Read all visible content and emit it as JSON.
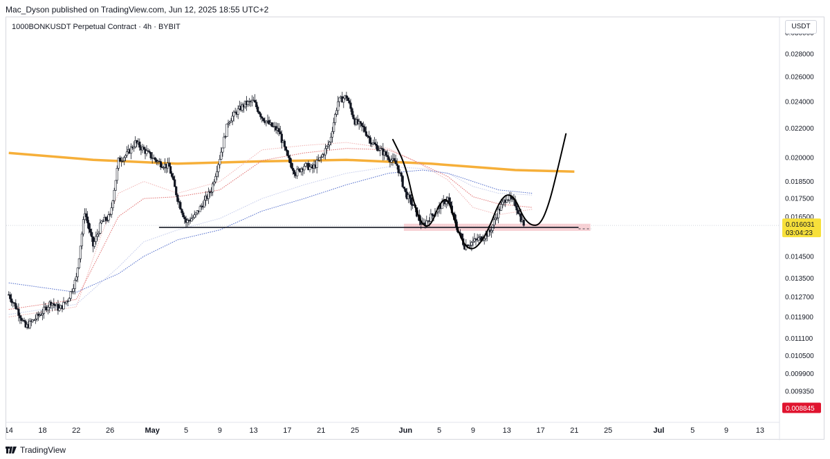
{
  "header": {
    "publish_line": "Mac_Dyson published on TradingView.com, Jun 12, 2025 18:55 UTC+2"
  },
  "footer": {
    "brand": "TradingView"
  },
  "chart_data": {
    "type": "candlestick",
    "title": "1000BONKUSDT Perpetual Contract · 4h · BYBIT",
    "currency": "USDT",
    "y_scale": "log",
    "ylim": [
      0.0086,
      0.031
    ],
    "y_ticks": [
      "0.030000",
      "0.028000",
      "0.026000",
      "0.024000",
      "0.022000",
      "0.020000",
      "0.018500",
      "0.017500",
      "0.016500",
      "0.014500",
      "0.013500",
      "0.012700",
      "0.011900",
      "0.011100",
      "0.010500",
      "0.009900",
      "0.009350"
    ],
    "x_ticks": [
      "14",
      "18",
      "22",
      "26",
      "May",
      "5",
      "9",
      "13",
      "17",
      "21",
      "25",
      "Jun",
      "5",
      "9",
      "13",
      "17",
      "21",
      "25",
      "Jul",
      "5",
      "9",
      "13"
    ],
    "x_range_days": [
      -0.3,
      91.3
    ],
    "last_price": {
      "value": "0.016031",
      "countdown": "03:04:23",
      "color": "#f7e03a"
    },
    "low_marker": {
      "value": "0.008845",
      "color": "#e0142f"
    },
    "grid": false,
    "price_path": [
      [
        0,
        0.0128
      ],
      [
        1,
        0.0122
      ],
      [
        2,
        0.0115
      ],
      [
        3,
        0.0118
      ],
      [
        4,
        0.0121
      ],
      [
        5,
        0.0125
      ],
      [
        6,
        0.0122
      ],
      [
        7,
        0.0126
      ],
      [
        8,
        0.0135
      ],
      [
        9,
        0.0168
      ],
      [
        10,
        0.015
      ],
      [
        11,
        0.0162
      ],
      [
        12,
        0.0165
      ],
      [
        13,
        0.0198
      ],
      [
        14,
        0.0202
      ],
      [
        15,
        0.021
      ],
      [
        16,
        0.0205
      ],
      [
        17,
        0.02
      ],
      [
        18,
        0.0196
      ],
      [
        19,
        0.0194
      ],
      [
        20,
        0.0175
      ],
      [
        21,
        0.0162
      ],
      [
        22,
        0.0165
      ],
      [
        23,
        0.0172
      ],
      [
        24,
        0.018
      ],
      [
        25,
        0.02
      ],
      [
        26,
        0.0225
      ],
      [
        27,
        0.0232
      ],
      [
        28,
        0.0238
      ],
      [
        29,
        0.024
      ],
      [
        30,
        0.0228
      ],
      [
        31,
        0.0222
      ],
      [
        32,
        0.0218
      ],
      [
        33,
        0.02
      ],
      [
        34,
        0.019
      ],
      [
        35,
        0.0195
      ],
      [
        36,
        0.0193
      ],
      [
        37,
        0.02
      ],
      [
        38,
        0.021
      ],
      [
        39,
        0.024
      ],
      [
        40,
        0.0244
      ],
      [
        41,
        0.0225
      ],
      [
        42,
        0.022
      ],
      [
        43,
        0.021
      ],
      [
        44,
        0.0205
      ],
      [
        45,
        0.02
      ],
      [
        46,
        0.0195
      ],
      [
        47,
        0.0178
      ],
      [
        48,
        0.017
      ],
      [
        49,
        0.016
      ],
      [
        50,
        0.0165
      ],
      [
        51,
        0.017
      ],
      [
        52,
        0.0175
      ],
      [
        53,
        0.016
      ],
      [
        54,
        0.015
      ],
      [
        55,
        0.0152
      ],
      [
        56,
        0.0154
      ],
      [
        57,
        0.0157
      ],
      [
        58,
        0.0168
      ],
      [
        59,
        0.0176
      ],
      [
        60,
        0.0172
      ],
      [
        61,
        0.01603
      ]
    ],
    "series": [
      {
        "name": "",
        "color": "#f5a623",
        "width": 3.5,
        "dash": "",
        "values": [
          [
            0,
            0.0203
          ],
          [
            10,
            0.01985
          ],
          [
            20,
            0.0196
          ],
          [
            30,
            0.01975
          ],
          [
            40,
            0.01985
          ],
          [
            50,
            0.0196
          ],
          [
            60,
            0.0192
          ],
          [
            67,
            0.0191
          ]
        ]
      },
      {
        "name": "",
        "color": "#4a67c9",
        "width": 1,
        "dash": "1.5 1.5",
        "values": [
          [
            0,
            0.0133
          ],
          [
            8,
            0.0129
          ],
          [
            13,
            0.0137
          ],
          [
            16,
            0.0145
          ],
          [
            20,
            0.0153
          ],
          [
            25,
            0.0158
          ],
          [
            30,
            0.0168
          ],
          [
            35,
            0.0175
          ],
          [
            40,
            0.0183
          ],
          [
            45,
            0.019
          ],
          [
            49,
            0.0192
          ],
          [
            52,
            0.019
          ],
          [
            55,
            0.0185
          ],
          [
            58,
            0.018
          ],
          [
            62,
            0.0178
          ]
        ]
      },
      {
        "name": "",
        "color": "#c0c8ea",
        "width": 1,
        "dash": "1.5 1.5",
        "values": [
          [
            0,
            0.012
          ],
          [
            8,
            0.0124
          ],
          [
            13,
            0.014
          ],
          [
            16,
            0.0152
          ],
          [
            20,
            0.0158
          ],
          [
            25,
            0.0164
          ],
          [
            30,
            0.0175
          ],
          [
            35,
            0.0183
          ],
          [
            40,
            0.019
          ],
          [
            45,
            0.0194
          ],
          [
            49,
            0.0193
          ],
          [
            52,
            0.019
          ],
          [
            55,
            0.0182
          ],
          [
            58,
            0.0178
          ],
          [
            62,
            0.0177
          ]
        ]
      },
      {
        "name": "",
        "color": "#e06b6b",
        "width": 1,
        "dash": "1.5 1.5",
        "values": [
          [
            0,
            0.0122
          ],
          [
            8,
            0.0126
          ],
          [
            11,
            0.0148
          ],
          [
            13,
            0.0165
          ],
          [
            16,
            0.0175
          ],
          [
            20,
            0.0176
          ],
          [
            25,
            0.018
          ],
          [
            30,
            0.0198
          ],
          [
            35,
            0.0203
          ],
          [
            40,
            0.0206
          ],
          [
            45,
            0.0205
          ],
          [
            48,
            0.0198
          ],
          [
            52,
            0.0188
          ],
          [
            55,
            0.0176
          ],
          [
            58,
            0.0172
          ],
          [
            62,
            0.017
          ]
        ]
      },
      {
        "name": "",
        "color": "#f0b0b0",
        "width": 1,
        "dash": "1.5 1.5",
        "values": [
          [
            0,
            0.0119
          ],
          [
            8,
            0.0123
          ],
          [
            11,
            0.0156
          ],
          [
            13,
            0.0178
          ],
          [
            16,
            0.0185
          ],
          [
            20,
            0.0178
          ],
          [
            25,
            0.0185
          ],
          [
            30,
            0.0205
          ],
          [
            35,
            0.0208
          ],
          [
            40,
            0.021
          ],
          [
            45,
            0.0206
          ],
          [
            48,
            0.0198
          ],
          [
            52,
            0.0186
          ],
          [
            55,
            0.017
          ],
          [
            58,
            0.0166
          ],
          [
            62,
            0.0169
          ]
        ]
      }
    ],
    "annotations": {
      "neckline": {
        "price": 0.01593,
        "x_from": 17.8,
        "x_to": 67.5,
        "color": "#131722"
      },
      "support_zone": {
        "price_low": 0.01575,
        "price_high": 0.01612,
        "x_from": 46.8,
        "x_to": 68.9,
        "color": "#f5c6cb"
      },
      "projection_path": [
        [
          45.5,
          0.0212
        ],
        [
          47,
          0.0195
        ],
        [
          48,
          0.0172
        ],
        [
          49,
          0.016
        ],
        [
          50,
          0.016
        ],
        [
          51,
          0.0172
        ],
        [
          52,
          0.0176
        ],
        [
          53,
          0.016
        ],
        [
          54,
          0.015
        ],
        [
          55,
          0.0148
        ],
        [
          56,
          0.0152
        ],
        [
          57,
          0.016
        ],
        [
          58,
          0.0172
        ],
        [
          59,
          0.0178
        ],
        [
          60,
          0.0175
        ],
        [
          61,
          0.0164
        ],
        [
          62,
          0.016
        ],
        [
          63,
          0.0161
        ],
        [
          64,
          0.0172
        ],
        [
          65,
          0.0192
        ],
        [
          66,
          0.0216
        ]
      ]
    }
  }
}
